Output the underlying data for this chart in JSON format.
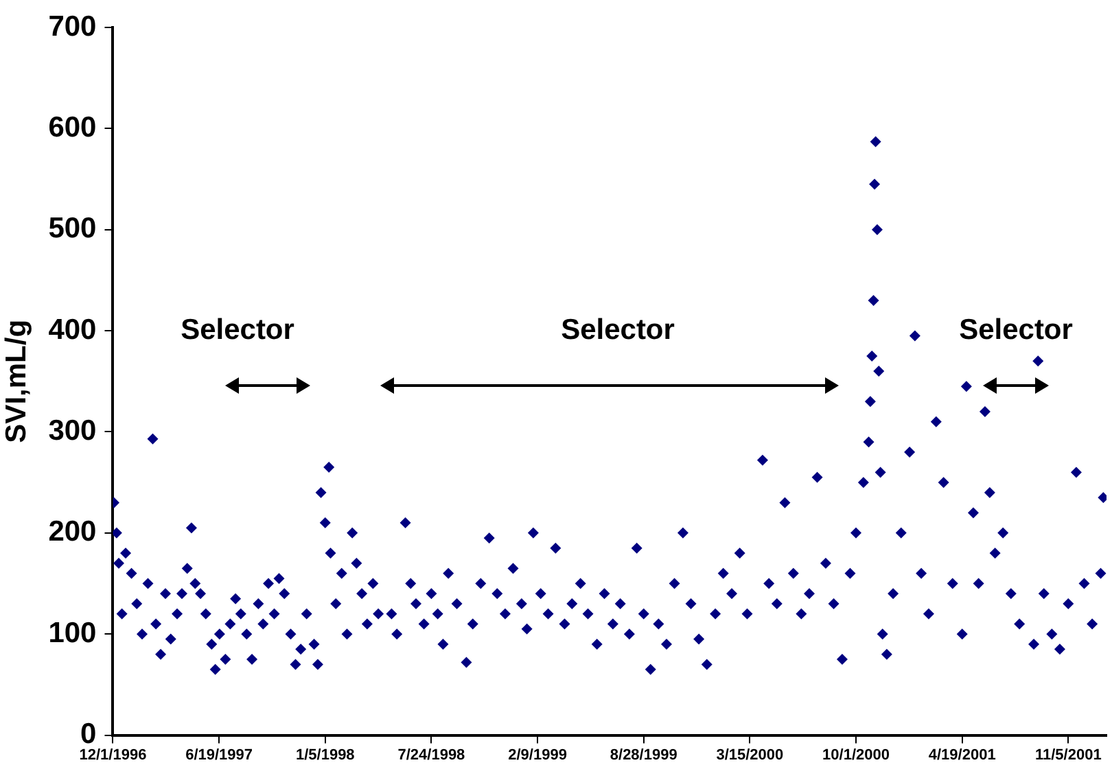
{
  "chart_data": {
    "type": "scatter",
    "ylabel": "SVI,mL/g",
    "xlim": [
      "1996-12-01",
      "2002-01-16"
    ],
    "xticks": [
      {
        "value": "1996-12-01",
        "label": "12/1/1996"
      },
      {
        "value": "1997-06-19",
        "label": "6/19/1997"
      },
      {
        "value": "1998-01-05",
        "label": "1/5/1998"
      },
      {
        "value": "1998-07-24",
        "label": "7/24/1998"
      },
      {
        "value": "1999-02-09",
        "label": "2/9/1999"
      },
      {
        "value": "1999-08-28",
        "label": "8/28/1999"
      },
      {
        "value": "2000-03-15",
        "label": "3/15/2000"
      },
      {
        "value": "2000-10-01",
        "label": "10/1/2000"
      },
      {
        "value": "2001-04-19",
        "label": "4/19/2001"
      },
      {
        "value": "2001-11-05",
        "label": "11/5/2001"
      }
    ],
    "ylim": [
      0,
      700
    ],
    "yticks": [
      0,
      100,
      200,
      300,
      400,
      500,
      600,
      700
    ],
    "grid": false,
    "legend": false,
    "marker": "diamond",
    "annotations": [
      "Selector",
      "Selector",
      "Selector"
    ],
    "series": [
      {
        "color": "#000080",
        "x": [
          "1996-12-03",
          "1996-12-08",
          "1996-12-12",
          "1996-12-18",
          "1996-12-25",
          "1997-01-05",
          "1997-01-15",
          "1997-01-25",
          "1997-02-05",
          "1997-02-14",
          "1997-02-20",
          "1997-03-01",
          "1997-03-10",
          "1997-03-20",
          "1997-04-01",
          "1997-04-10",
          "1997-04-20",
          "1997-04-28",
          "1997-05-05",
          "1997-05-15",
          "1997-05-25",
          "1997-06-05",
          "1997-06-12",
          "1997-06-20",
          "1997-07-01",
          "1997-07-10",
          "1997-07-20",
          "1997-07-30",
          "1997-08-10",
          "1997-08-20",
          "1997-09-01",
          "1997-09-10",
          "1997-09-20",
          "1997-10-01",
          "1997-10-10",
          "1997-10-20",
          "1997-11-01",
          "1997-11-10",
          "1997-11-20",
          "1997-12-01",
          "1997-12-15",
          "1997-12-22",
          "1997-12-28",
          "1998-01-05",
          "1998-01-12",
          "1998-01-15",
          "1998-01-25",
          "1998-02-05",
          "1998-02-15",
          "1998-02-25",
          "1998-03-05",
          "1998-03-15",
          "1998-03-25",
          "1998-04-05",
          "1998-04-15",
          "1998-05-10",
          "1998-05-20",
          "1998-06-05",
          "1998-06-15",
          "1998-06-25",
          "1998-07-10",
          "1998-07-24",
          "1998-08-05",
          "1998-08-15",
          "1998-08-25",
          "1998-09-10",
          "1998-09-28",
          "1998-10-10",
          "1998-10-25",
          "1998-11-10",
          "1998-11-25",
          "1998-12-10",
          "1998-12-25",
          "1999-01-10",
          "1999-01-20",
          "1999-02-01",
          "1999-02-15",
          "1999-03-01",
          "1999-03-15",
          "1999-04-01",
          "1999-04-15",
          "1999-05-01",
          "1999-05-15",
          "1999-06-01",
          "1999-06-15",
          "1999-07-01",
          "1999-07-15",
          "1999-08-01",
          "1999-08-15",
          "1999-08-28",
          "1999-09-10",
          "1999-09-25",
          "1999-10-10",
          "1999-10-25",
          "1999-11-10",
          "1999-11-25",
          "1999-12-10",
          "1999-12-25",
          "2000-01-10",
          "2000-01-25",
          "2000-02-10",
          "2000-02-25",
          "2000-03-10",
          "2000-04-08",
          "2000-04-20",
          "2000-05-05",
          "2000-05-20",
          "2000-06-05",
          "2000-06-20",
          "2000-07-05",
          "2000-07-20",
          "2000-08-05",
          "2000-08-20",
          "2000-09-05",
          "2000-09-20",
          "2000-10-01",
          "2000-10-15",
          "2000-10-25",
          "2000-10-28",
          "2000-10-31",
          "2000-11-03",
          "2000-11-05",
          "2000-11-07",
          "2000-11-10",
          "2000-11-13",
          "2000-11-16",
          "2000-11-20",
          "2000-11-28",
          "2000-12-10",
          "2000-12-25",
          "2001-01-10",
          "2001-01-20",
          "2001-02-01",
          "2001-02-15",
          "2001-03-01",
          "2001-03-15",
          "2001-04-01",
          "2001-04-19",
          "2001-04-27",
          "2001-05-10",
          "2001-05-20",
          "2001-06-01",
          "2001-06-10",
          "2001-06-20",
          "2001-07-05",
          "2001-07-20",
          "2001-08-05",
          "2001-09-01",
          "2001-09-09",
          "2001-09-20",
          "2001-10-05",
          "2001-10-20",
          "2001-11-05",
          "2001-11-20",
          "2001-12-05",
          "2001-12-20",
          "2002-01-05",
          "2002-01-10"
        ],
        "values": [
          230,
          200,
          170,
          120,
          180,
          160,
          130,
          100,
          150,
          293,
          110,
          80,
          140,
          95,
          120,
          140,
          165,
          205,
          150,
          140,
          120,
          90,
          65,
          100,
          75,
          110,
          135,
          120,
          100,
          75,
          130,
          110,
          150,
          120,
          155,
          140,
          100,
          70,
          85,
          120,
          90,
          70,
          240,
          210,
          265,
          180,
          130,
          160,
          100,
          200,
          170,
          140,
          110,
          150,
          120,
          120,
          100,
          210,
          150,
          130,
          110,
          140,
          120,
          90,
          160,
          130,
          72,
          110,
          150,
          195,
          140,
          120,
          165,
          130,
          105,
          200,
          140,
          120,
          185,
          110,
          130,
          150,
          120,
          90,
          140,
          110,
          130,
          100,
          185,
          120,
          65,
          110,
          90,
          150,
          200,
          130,
          95,
          70,
          120,
          160,
          140,
          180,
          120,
          272,
          150,
          130,
          230,
          160,
          120,
          140,
          255,
          170,
          130,
          75,
          160,
          200,
          250,
          290,
          330,
          375,
          430,
          545,
          587,
          500,
          360,
          260,
          100,
          80,
          140,
          200,
          280,
          395,
          160,
          120,
          310,
          250,
          150,
          100,
          345,
          220,
          150,
          320,
          240,
          180,
          200,
          140,
          110,
          90,
          370,
          140,
          100,
          85,
          130,
          260,
          150,
          110,
          160,
          235
        ]
      }
    ]
  }
}
